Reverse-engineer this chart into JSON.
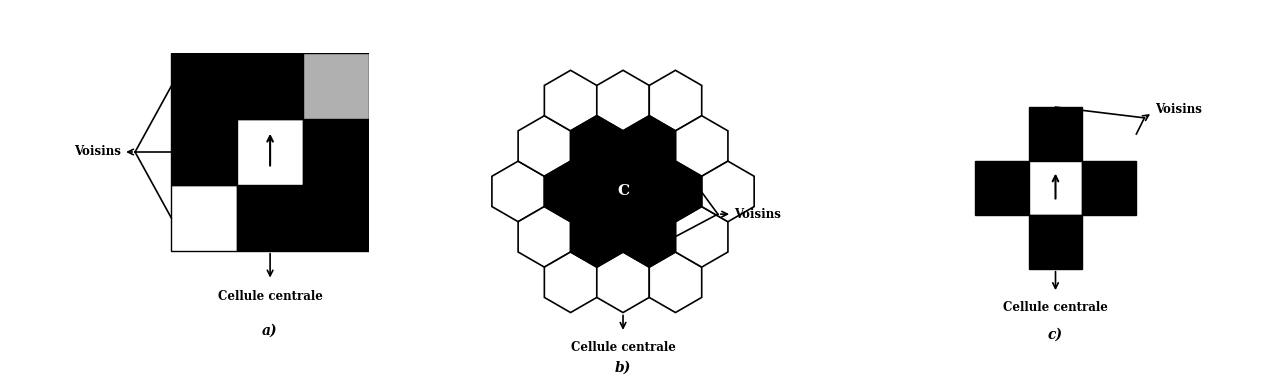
{
  "fig_width": 12.81,
  "fig_height": 3.8,
  "bg_color": "#ffffff",
  "panel_a": {
    "label": "a)",
    "title": "Cellule centrale",
    "voisins_label": "Voisins",
    "cell_colors_top": [
      "black",
      "black",
      "gray"
    ],
    "cell_colors_mid": [
      "black",
      "white",
      "black"
    ],
    "cell_colors_bot": [
      "white",
      "black",
      "black"
    ]
  },
  "panel_b": {
    "label": "b)",
    "title": "Cellule centrale",
    "voisins_label": "Voisins",
    "center_label": "C",
    "hex_size": 0.75
  },
  "panel_c": {
    "label": "c)",
    "title": "Cellule centrale",
    "voisins_label": "Voisins"
  }
}
